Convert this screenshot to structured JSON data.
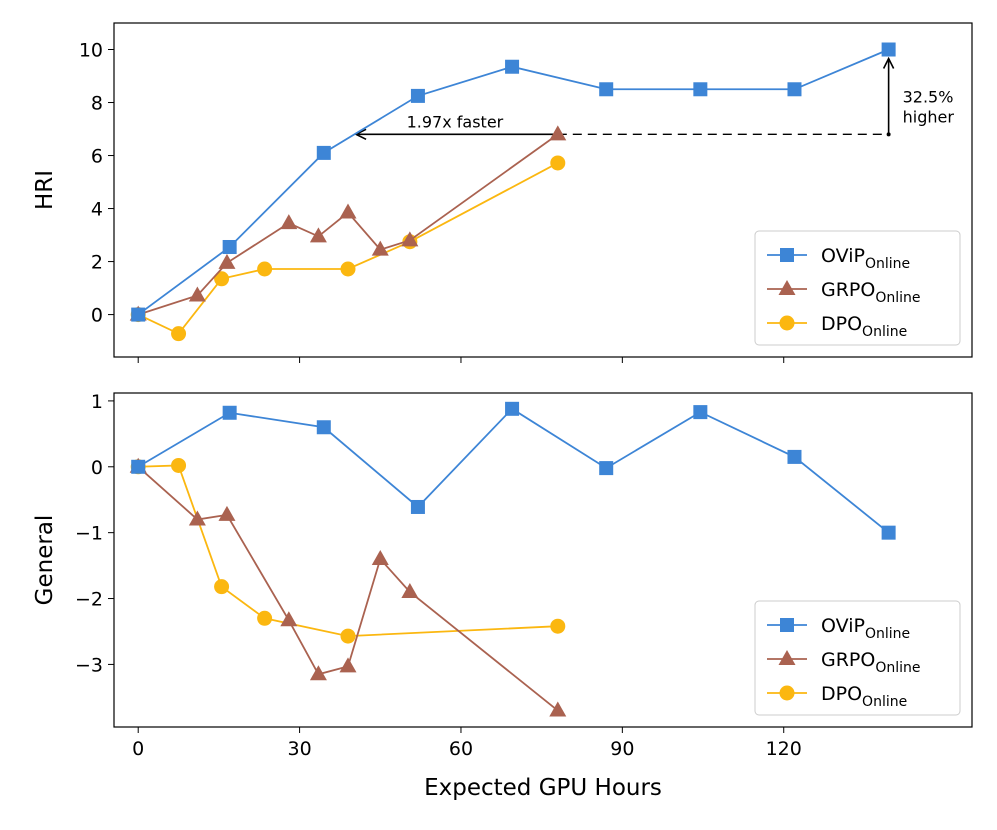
{
  "chart_data": [
    {
      "type": "line",
      "id": "hri",
      "ylabel": "HRI",
      "xlabel": "",
      "xlim": [
        -4.5,
        155
      ],
      "ylim": [
        -1.6,
        11.0
      ],
      "yticks": [
        0,
        2,
        4,
        6,
        8,
        10
      ],
      "xticks": [
        0,
        30,
        60,
        90,
        120
      ],
      "show_xtick_labels": false,
      "legend": "lower-right",
      "series": [
        {
          "name": "OViP",
          "sub": "Online",
          "color": "#3d85d6",
          "marker": "square",
          "x": [
            0,
            17,
            34.5,
            52,
            69.5,
            87,
            104.5,
            122,
            139.5
          ],
          "y": [
            0,
            2.55,
            6.1,
            8.25,
            9.35,
            8.5,
            8.5,
            8.5,
            10.0
          ]
        },
        {
          "name": "GRPO",
          "sub": "Online",
          "color": "#aa6250",
          "marker": "triangle",
          "x": [
            0,
            11,
            16.5,
            28,
            33.5,
            39,
            45,
            50.5,
            78
          ],
          "y": [
            0,
            0.72,
            1.95,
            3.45,
            2.95,
            3.85,
            2.45,
            2.8,
            6.8
          ]
        },
        {
          "name": "DPO",
          "sub": "Online",
          "color": "#fbb710",
          "marker": "circle",
          "x": [
            0,
            7.5,
            15.5,
            23.5,
            39,
            50.5,
            78
          ],
          "y": [
            0,
            -0.72,
            1.35,
            1.72,
            1.72,
            2.75,
            5.72
          ]
        }
      ],
      "annotations": {
        "faster_text": "1.97x faster",
        "higher_text_line1": "32.5%",
        "higher_text_line2": "higher",
        "faster_arrow": {
          "from_x": 78,
          "to_x": 40.5,
          "y": 6.8
        },
        "dashed_line": {
          "from_x": 78,
          "to_x": 139.5,
          "y": 6.8
        },
        "higher_arrow": {
          "x": 139.5,
          "from_y": 6.8,
          "to_y": 10.0
        }
      }
    },
    {
      "type": "line",
      "id": "general",
      "ylabel": "General",
      "xlabel": "Expected GPU Hours",
      "xlim": [
        -4.5,
        155
      ],
      "ylim": [
        -3.95,
        1.12
      ],
      "yticks": [
        -3,
        -2,
        -1,
        0,
        1
      ],
      "xticks": [
        0,
        30,
        60,
        90,
        120
      ],
      "show_xtick_labels": true,
      "legend": "lower-right",
      "series": [
        {
          "name": "OViP",
          "sub": "Online",
          "color": "#3d85d6",
          "marker": "square",
          "x": [
            0,
            17,
            34.5,
            52,
            69.5,
            87,
            104.5,
            122,
            139.5
          ],
          "y": [
            0,
            0.82,
            0.6,
            -0.61,
            0.88,
            -0.02,
            0.83,
            0.15,
            -1.0
          ]
        },
        {
          "name": "GRPO",
          "sub": "Online",
          "color": "#aa6250",
          "marker": "triangle",
          "x": [
            0,
            11,
            16.5,
            28,
            33.5,
            39,
            45,
            50.5,
            78
          ],
          "y": [
            0,
            -0.8,
            -0.73,
            -2.33,
            -3.15,
            -3.03,
            -1.4,
            -1.9,
            -3.7
          ]
        },
        {
          "name": "DPO",
          "sub": "Online",
          "color": "#fbb710",
          "marker": "circle",
          "x": [
            0,
            7.5,
            15.5,
            23.5,
            39,
            78
          ],
          "y": [
            0,
            0.02,
            -1.82,
            -2.3,
            -2.57,
            -2.42
          ]
        }
      ]
    }
  ]
}
